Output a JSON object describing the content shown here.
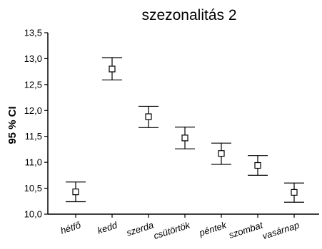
{
  "chart_data": {
    "type": "scatter",
    "title": "szezonalitás 2",
    "xlabel": "",
    "ylabel": "95 % CI",
    "categories": [
      "hétfő",
      "kedd",
      "szerda",
      "csütörtök",
      "péntek",
      "szombat",
      "vasárnap"
    ],
    "y_tick_labels": [
      "10,0",
      "10,5",
      "11,0",
      "11,5",
      "12,0",
      "12,5",
      "13,0",
      "13,5"
    ],
    "ylim": [
      10.0,
      13.5
    ],
    "grid": false,
    "marker": "open-square",
    "series": [
      {
        "means": [
          10.43,
          12.8,
          11.88,
          11.47,
          11.17,
          10.94,
          10.42
        ],
        "upper": [
          10.62,
          13.02,
          12.08,
          11.68,
          11.37,
          11.13,
          10.6
        ],
        "lower": [
          10.24,
          12.59,
          11.67,
          11.26,
          10.96,
          10.75,
          10.23
        ]
      }
    ]
  }
}
